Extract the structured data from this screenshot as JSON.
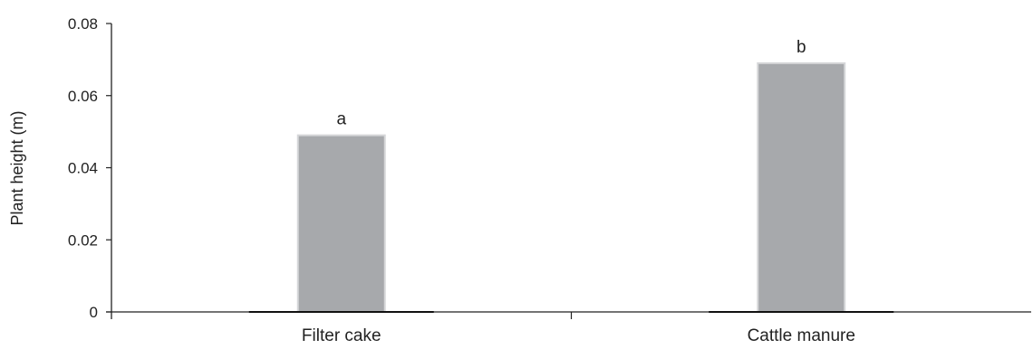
{
  "chart_data": {
    "type": "bar",
    "categories": [
      "Filter cake",
      "Cattle manure"
    ],
    "values": [
      0.049,
      0.069
    ],
    "bar_labels": [
      "a",
      "b"
    ],
    "title": "",
    "xlabel": "",
    "ylabel": "Plant height (m)",
    "ylim": [
      0,
      0.08
    ],
    "yticks": [
      0,
      0.02,
      0.04,
      0.06,
      0.08
    ],
    "ytick_labels": [
      "0",
      "0.02",
      "0.04",
      "0.06",
      "0.08"
    ],
    "grid": false,
    "legend": "none",
    "colors": {
      "bar": "#a7a9ac",
      "bar_edge": "#d6d7d9",
      "axis": "#222222"
    }
  }
}
